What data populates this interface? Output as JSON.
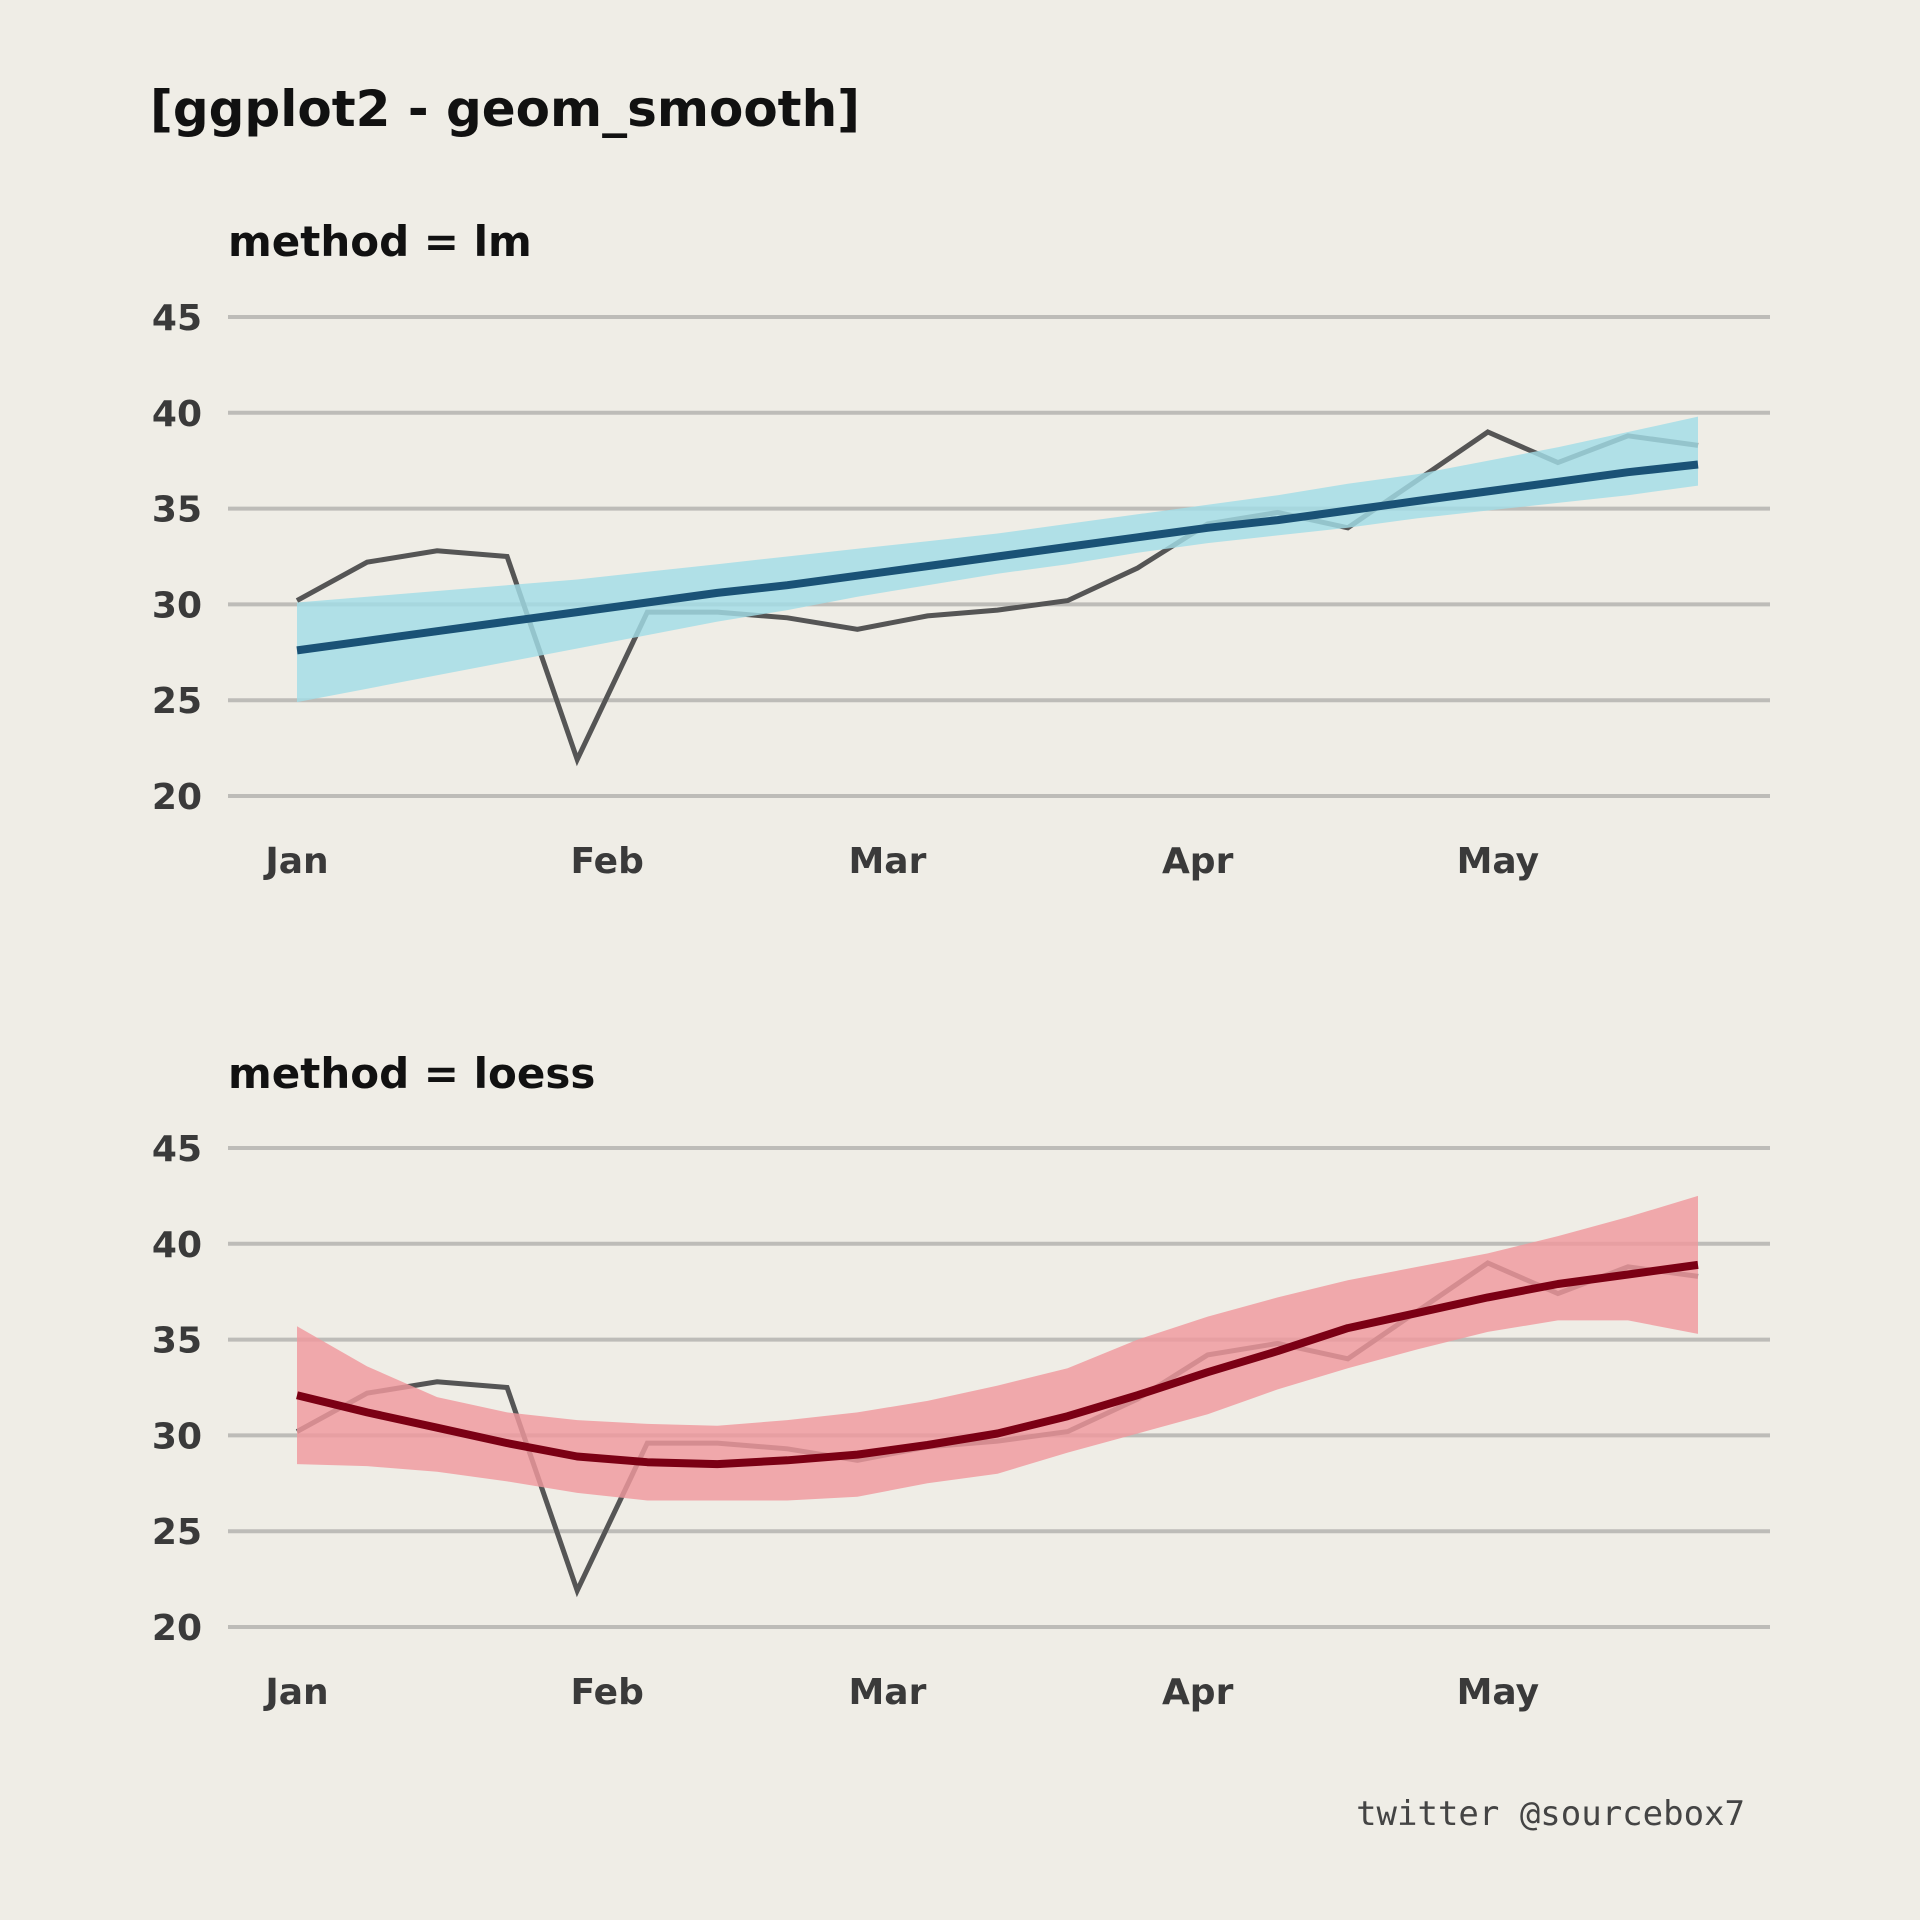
{
  "title": "[ggplot2 - geom_smooth]",
  "credit": "twitter @sourcebox7",
  "colors": {
    "background": "#efede6",
    "grid": "#bdbcb8",
    "raw_line": "#555555",
    "lm_band": "#a2dde6",
    "lm_fit": "#1a5276",
    "loess_band": "#f0999e",
    "loess_fit": "#7b0014"
  },
  "chart_data": [
    {
      "type": "line",
      "title": "method = lm",
      "xlabel": "",
      "ylabel": "",
      "x_tick_labels": [
        "Jan",
        "Feb",
        "Mar",
        "Apr",
        "May"
      ],
      "x_tick_dates": [
        "2023-01-01",
        "2023-02-01",
        "2023-03-01",
        "2023-04-01",
        "2023-05-01"
      ],
      "y_ticks": [
        20,
        25,
        30,
        35,
        40,
        45
      ],
      "ylim": [
        20,
        45
      ],
      "grid": true,
      "legend": "none",
      "x": [
        "2023-01-01",
        "2023-01-08",
        "2023-01-15",
        "2023-01-22",
        "2023-01-29",
        "2023-02-05",
        "2023-02-12",
        "2023-02-19",
        "2023-02-26",
        "2023-03-05",
        "2023-03-12",
        "2023-03-19",
        "2023-03-26",
        "2023-04-02",
        "2023-04-09",
        "2023-04-16",
        "2023-04-23",
        "2023-04-30",
        "2023-05-07",
        "2023-05-14",
        "2023-05-21"
      ],
      "series": [
        {
          "values": [
            30.2,
            32.2,
            32.8,
            32.5,
            21.9,
            29.6,
            29.6,
            29.3,
            28.7,
            29.4,
            29.7,
            30.2,
            31.9,
            34.2,
            34.8,
            34.0,
            36.5,
            39.0,
            37.4,
            38.8,
            38.3
          ]
        }
      ],
      "smooth": {
        "method": "lm",
        "fit": [
          27.6,
          28.1,
          28.6,
          29.1,
          29.6,
          30.1,
          30.6,
          31.0,
          31.5,
          32.0,
          32.5,
          33.0,
          33.5,
          34.0,
          34.4,
          34.9,
          35.4,
          35.9,
          36.4,
          36.9,
          37.3
        ],
        "lower": [
          24.9,
          25.6,
          26.3,
          27.0,
          27.7,
          28.4,
          29.1,
          29.7,
          30.4,
          31.0,
          31.6,
          32.1,
          32.7,
          33.2,
          33.6,
          34.0,
          34.5,
          34.9,
          35.3,
          35.7,
          36.2
        ],
        "upper": [
          30.1,
          30.4,
          30.7,
          31.0,
          31.3,
          31.7,
          32.1,
          32.5,
          32.9,
          33.3,
          33.7,
          34.2,
          34.7,
          35.2,
          35.7,
          36.3,
          36.8,
          37.5,
          38.2,
          39.0,
          39.8
        ]
      }
    },
    {
      "type": "line",
      "title": "method = loess",
      "xlabel": "",
      "ylabel": "",
      "x_tick_labels": [
        "Jan",
        "Feb",
        "Mar",
        "Apr",
        "May"
      ],
      "x_tick_dates": [
        "2023-01-01",
        "2023-02-01",
        "2023-03-01",
        "2023-04-01",
        "2023-05-01"
      ],
      "y_ticks": [
        20,
        25,
        30,
        35,
        40,
        45
      ],
      "ylim": [
        20,
        45
      ],
      "grid": true,
      "legend": "none",
      "x": [
        "2023-01-01",
        "2023-01-08",
        "2023-01-15",
        "2023-01-22",
        "2023-01-29",
        "2023-02-05",
        "2023-02-12",
        "2023-02-19",
        "2023-02-26",
        "2023-03-05",
        "2023-03-12",
        "2023-03-19",
        "2023-03-26",
        "2023-04-02",
        "2023-04-09",
        "2023-04-16",
        "2023-04-23",
        "2023-04-30",
        "2023-05-07",
        "2023-05-14",
        "2023-05-21"
      ],
      "series": [
        {
          "values": [
            30.2,
            32.2,
            32.8,
            32.5,
            21.9,
            29.6,
            29.6,
            29.3,
            28.7,
            29.4,
            29.7,
            30.2,
            31.9,
            34.2,
            34.8,
            34.0,
            36.5,
            39.0,
            37.4,
            38.8,
            38.3
          ]
        }
      ],
      "smooth": {
        "method": "loess",
        "fit": [
          32.1,
          31.2,
          30.4,
          29.6,
          28.9,
          28.6,
          28.5,
          28.7,
          29.0,
          29.5,
          30.1,
          31.0,
          32.1,
          33.3,
          34.4,
          35.6,
          36.4,
          37.2,
          37.9,
          38.4,
          38.9
        ],
        "lower": [
          28.5,
          28.4,
          28.1,
          27.6,
          27.0,
          26.6,
          26.6,
          26.6,
          26.8,
          27.5,
          28.0,
          29.1,
          30.1,
          31.1,
          32.4,
          33.5,
          34.5,
          35.4,
          36.0,
          36.0,
          35.3
        ],
        "upper": [
          35.7,
          33.6,
          32.0,
          31.2,
          30.8,
          30.6,
          30.5,
          30.8,
          31.2,
          31.8,
          32.6,
          33.5,
          35.0,
          36.2,
          37.2,
          38.1,
          38.8,
          39.5,
          40.4,
          41.4,
          42.5
        ]
      }
    }
  ]
}
